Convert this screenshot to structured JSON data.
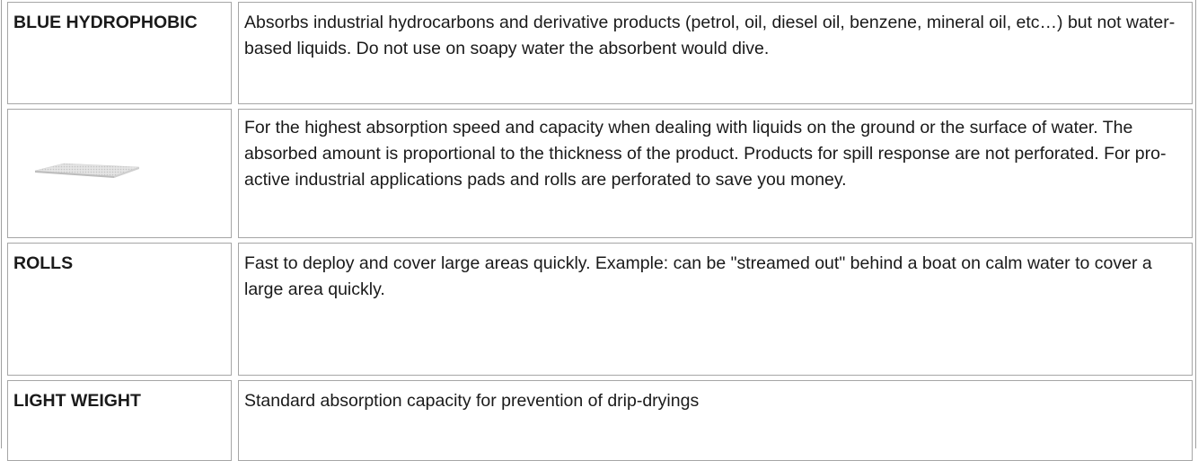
{
  "table": {
    "rows": [
      {
        "label": "BLUE HYDROPHOBIC",
        "text": "Absorbs industrial hydrocarbons and derivative products (petrol, oil, diesel oil, benzene, mineral oil, etc…) but not water-based liquids. Do not use on soapy water the absorbent would dive."
      },
      {
        "text": "For the highest absorption speed and capacity when dealing with liquids on the ground or the surface of water. The absorbed amount is proportional to the thickness of the product. Products for spill response are not perforated. For pro-active industrial applications pads and rolls are perforated to save you money."
      },
      {
        "label": "ROLLS",
        "text": "Fast to deploy and cover large areas quickly. Example: can be \"streamed out\" behind a boat on calm water to cover a large area quickly."
      },
      {
        "label": "LIGHT WEIGHT",
        "text": "Standard absorption capacity for prevention of drip-dryings"
      }
    ]
  }
}
